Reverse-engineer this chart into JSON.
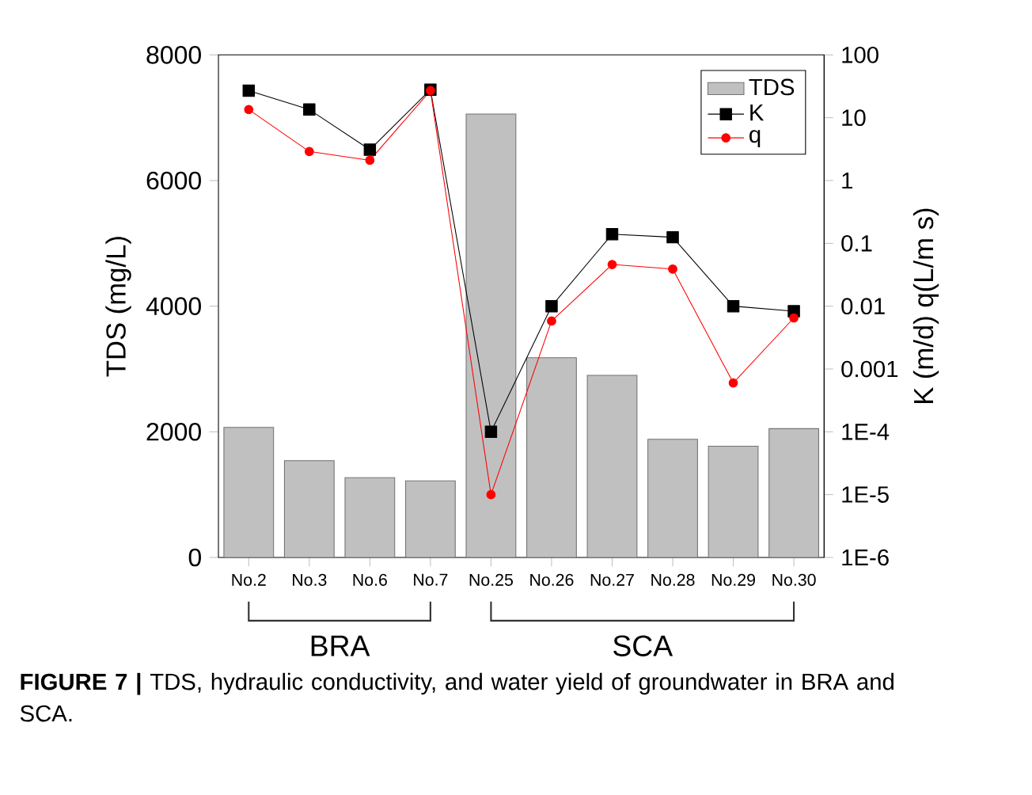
{
  "chart_data": {
    "type": "bar",
    "categories": [
      "No.2",
      "No.3",
      "No.6",
      "No.7",
      "No.25",
      "No.26",
      "No.27",
      "No.28",
      "No.29",
      "No.30"
    ],
    "ylabel": "TDS (mg/L)",
    "y2label": "K (m/d)    q(L/m s)",
    "ylim": [
      0,
      8000
    ],
    "yticks": [
      0,
      2000,
      4000,
      6000,
      8000
    ],
    "y2lim": [
      1e-06,
      100
    ],
    "y2ticks": [
      {
        "value": 1e-06,
        "label": "1E-6"
      },
      {
        "value": 1e-05,
        "label": "1E-5"
      },
      {
        "value": 0.0001,
        "label": "1E-4"
      },
      0.001,
      0.01,
      0.1,
      1,
      10,
      100
    ],
    "log": "y2",
    "legend": "top right",
    "annotations": [
      "BRA",
      "SCA",
      "**FIGURE 7 |** TDS, hydraulic conductivity, and water yield of groundwater in BRA and SCA."
    ],
    "series": [
      {
        "name": "TDS",
        "color": "#c0c0c0",
        "values": [
          2070,
          1540,
          1270,
          1220,
          7060,
          3180,
          2900,
          1880,
          1770,
          2050
        ]
      },
      {
        "name": "K",
        "type": "line",
        "axis": "y2",
        "marker": "square",
        "color": "#000000",
        "values": [
          27,
          13.5,
          3.1,
          28,
          0.0001,
          0.01,
          0.14,
          0.125,
          0.01,
          0.0083
        ]
      },
      {
        "name": "q",
        "type": "line",
        "axis": "y2",
        "marker": "circle",
        "color": "#ff0000",
        "values": [
          13.5,
          2.9,
          2.1,
          27,
          1e-05,
          0.0058,
          0.046,
          0.039,
          0.0006,
          0.0065
        ]
      }
    ]
  }
}
